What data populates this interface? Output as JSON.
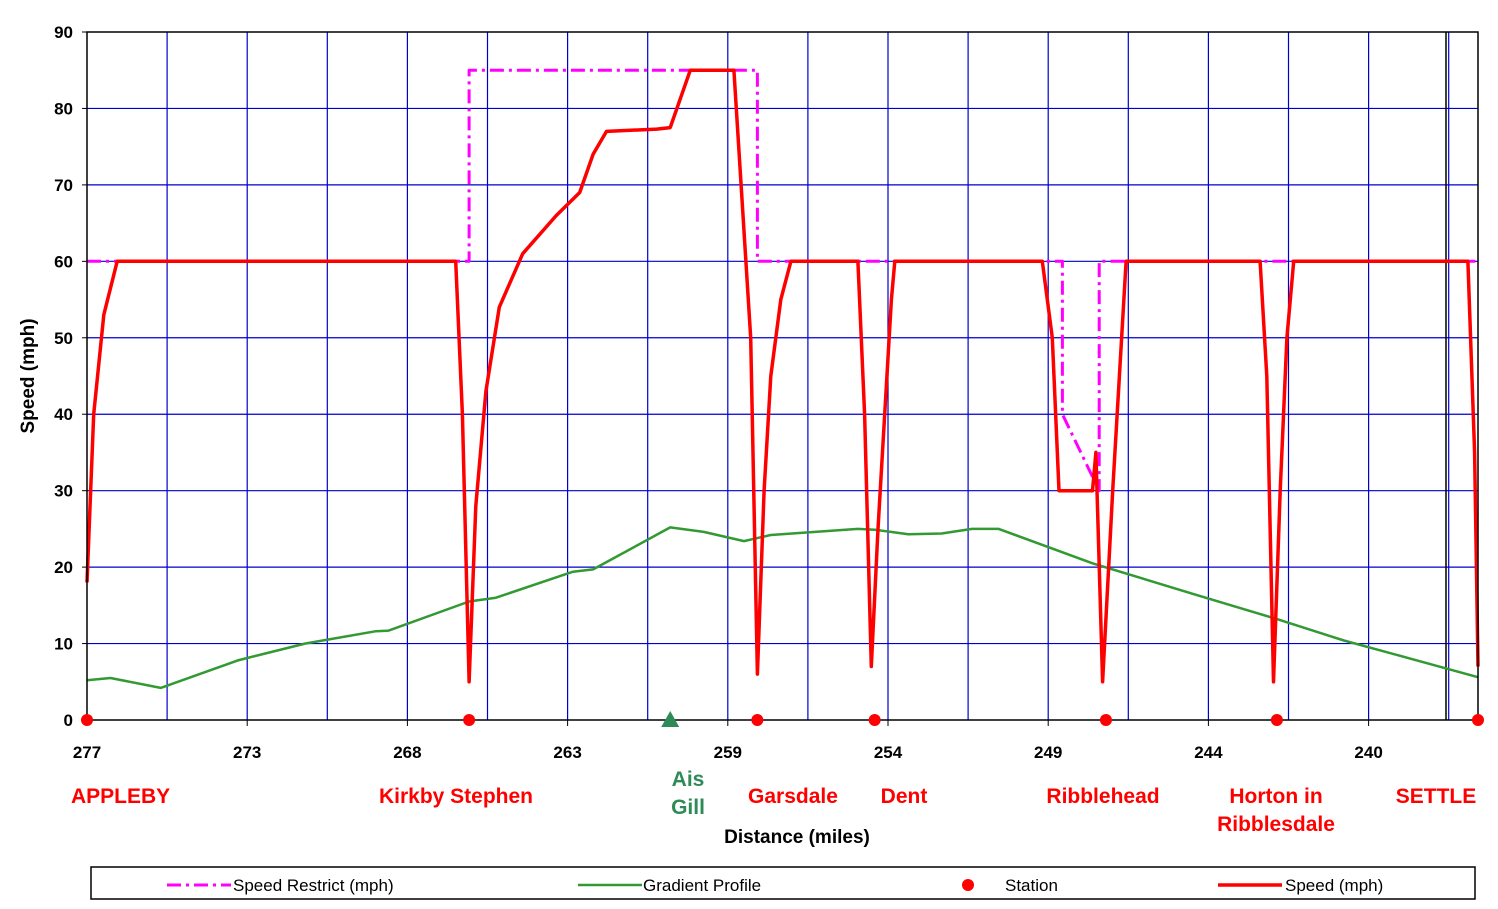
{
  "chart_data": {
    "type": "line",
    "xlabel": "Distance (miles)",
    "ylabel": "Speed (mph)",
    "ylim": [
      0,
      90
    ],
    "xlim": [
      277,
      235.5
    ],
    "x_reversed": true,
    "grid": true,
    "y_ticks": [
      "0",
      "10",
      "20",
      "30",
      "40",
      "50",
      "60",
      "70",
      "80",
      "90"
    ],
    "x_ticks": [
      {
        "label": "277",
        "x": 277
      },
      {
        "label": "273",
        "x": 273
      },
      {
        "label": "268",
        "x": 268
      },
      {
        "label": "263",
        "x": 263
      },
      {
        "label": "259",
        "x": 259
      },
      {
        "label": "254",
        "x": 254
      },
      {
        "label": "249",
        "x": 249
      },
      {
        "label": "244",
        "x": 244
      },
      {
        "label": "240",
        "x": 240
      }
    ],
    "station_labels": [
      {
        "text": "APPLEBY",
        "x": 277,
        "color": "#ff0000"
      },
      {
        "text": "Kirkby Stephen",
        "x": 265.6,
        "color": "#ff0000"
      },
      {
        "text": "Ais Gill",
        "x": 259.7,
        "color": "#2e8b57"
      },
      {
        "text": "Garsdale",
        "x": 257.0,
        "color": "#ff0000"
      },
      {
        "text": "Dent",
        "x": 253.5,
        "color": "#ff0000"
      },
      {
        "text": "Ribblehead",
        "x": 247.0,
        "color": "#ff0000"
      },
      {
        "text": "Horton in Ribblesdale",
        "x": 241.9,
        "color": "#ff0000"
      },
      {
        "text": "SETTLE",
        "x": 235.5,
        "color": "#ff0000"
      }
    ],
    "series": [
      {
        "name": "Speed Restrict (mph)",
        "color": "#ff00ff",
        "style": "dashdot",
        "points": [
          [
            277,
            60
          ],
          [
            265.6,
            60
          ],
          [
            265.6,
            85
          ],
          [
            257.0,
            85
          ],
          [
            257.0,
            60
          ],
          [
            247.9,
            60
          ],
          [
            247.9,
            40
          ],
          [
            246.8,
            30
          ],
          [
            246.8,
            60
          ],
          [
            235.5,
            60
          ]
        ]
      },
      {
        "name": "Gradient Profile",
        "color": "#339933",
        "style": "solid",
        "points": [
          [
            277,
            5.2
          ],
          [
            276.3,
            5.5
          ],
          [
            274.8,
            4.2
          ],
          [
            272.5,
            7.8
          ],
          [
            270.5,
            10.0
          ],
          [
            268.4,
            11.6
          ],
          [
            268.0,
            11.7
          ],
          [
            265.6,
            15.5
          ],
          [
            264.8,
            16.0
          ],
          [
            262.5,
            19.4
          ],
          [
            261.9,
            19.7
          ],
          [
            259.6,
            25.2
          ],
          [
            258.6,
            24.6
          ],
          [
            257.4,
            23.4
          ],
          [
            256.6,
            24.2
          ],
          [
            254.0,
            25.0
          ],
          [
            253.5,
            24.9
          ],
          [
            252.5,
            24.3
          ],
          [
            251.5,
            24.4
          ],
          [
            250.6,
            25.0
          ],
          [
            249.8,
            25.0
          ],
          [
            247.0,
            20.5
          ],
          [
            244.0,
            16.5
          ],
          [
            241.5,
            13.2
          ],
          [
            239.5,
            10.4
          ],
          [
            237.5,
            8.0
          ],
          [
            235.5,
            5.6
          ]
        ]
      },
      {
        "name": "Station",
        "color": "#ff0000",
        "marker": "circle",
        "points": [
          [
            277,
            0
          ],
          [
            265.6,
            0
          ],
          [
            257.0,
            0
          ],
          [
            253.5,
            0
          ],
          [
            246.6,
            0
          ],
          [
            241.5,
            0
          ],
          [
            235.5,
            0
          ]
        ],
        "extra_marker": {
          "shape": "triangle",
          "color": "#2e8b57",
          "x": 259.6,
          "y": 0
        }
      },
      {
        "name": "Speed (mph)",
        "color": "#ff0000",
        "style": "solid",
        "points": [
          [
            277,
            18
          ],
          [
            276.8,
            40
          ],
          [
            276.5,
            53
          ],
          [
            276.1,
            60
          ],
          [
            266.0,
            60
          ],
          [
            265.8,
            40
          ],
          [
            265.6,
            5
          ],
          [
            265.4,
            28
          ],
          [
            265.1,
            43
          ],
          [
            264.7,
            54
          ],
          [
            264.0,
            61
          ],
          [
            263.0,
            66
          ],
          [
            262.3,
            69
          ],
          [
            261.9,
            74
          ],
          [
            261.5,
            77
          ],
          [
            260.0,
            77.3
          ],
          [
            259.6,
            77.5
          ],
          [
            259.0,
            85
          ],
          [
            257.7,
            85
          ],
          [
            257.2,
            50
          ],
          [
            257.0,
            6
          ],
          [
            256.8,
            30
          ],
          [
            256.6,
            45
          ],
          [
            256.3,
            55
          ],
          [
            256.0,
            60
          ],
          [
            254.0,
            60
          ],
          [
            253.8,
            40
          ],
          [
            253.6,
            7
          ],
          [
            253.4,
            25
          ],
          [
            253.0,
            55
          ],
          [
            252.9,
            60
          ],
          [
            248.5,
            60
          ],
          [
            248.2,
            50
          ],
          [
            248.0,
            30
          ],
          [
            247.0,
            30
          ],
          [
            246.9,
            35
          ],
          [
            246.7,
            5
          ],
          [
            246.4,
            30
          ],
          [
            246.2,
            45
          ],
          [
            246.0,
            60
          ],
          [
            242.0,
            60
          ],
          [
            241.8,
            45
          ],
          [
            241.6,
            5
          ],
          [
            241.4,
            30
          ],
          [
            241.2,
            50
          ],
          [
            241.0,
            60
          ],
          [
            235.8,
            60
          ],
          [
            235.6,
            35
          ],
          [
            235.5,
            7
          ]
        ]
      }
    ],
    "legend": {
      "position": "bottom",
      "entries": [
        "Speed Restrict (mph)",
        "Gradient Profile",
        "Station",
        "Speed (mph)"
      ]
    }
  }
}
